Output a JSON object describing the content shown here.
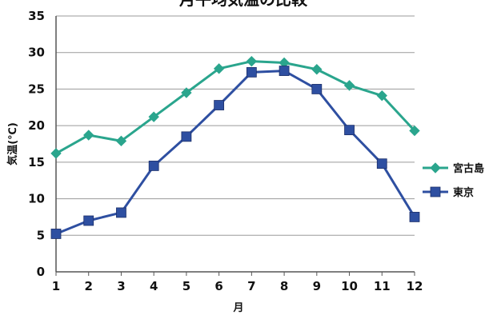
{
  "chart_data": {
    "type": "line",
    "title": "月平均気温の比較",
    "xlabel": "月",
    "ylabel": "気温(℃)",
    "categories": [
      "1",
      "2",
      "3",
      "4",
      "5",
      "6",
      "7",
      "8",
      "9",
      "10",
      "11",
      "12"
    ],
    "ylim": [
      0,
      35
    ],
    "yticks": [
      "0",
      "5",
      "10",
      "15",
      "20",
      "25",
      "30",
      "35"
    ],
    "grid": true,
    "legend_position": "right",
    "series": [
      {
        "name": "宮古島",
        "color": "#2aa58d",
        "marker": "diamond",
        "values": [
          16.2,
          18.7,
          17.9,
          21.2,
          24.5,
          27.8,
          28.8,
          28.6,
          27.7,
          25.5,
          24.1,
          19.3
        ]
      },
      {
        "name": "東京",
        "color": "#2e4fa1",
        "marker": "square",
        "values": [
          5.2,
          7.0,
          8.1,
          14.5,
          18.5,
          22.8,
          27.3,
          27.5,
          25.0,
          19.4,
          14.8,
          7.5
        ]
      }
    ]
  }
}
